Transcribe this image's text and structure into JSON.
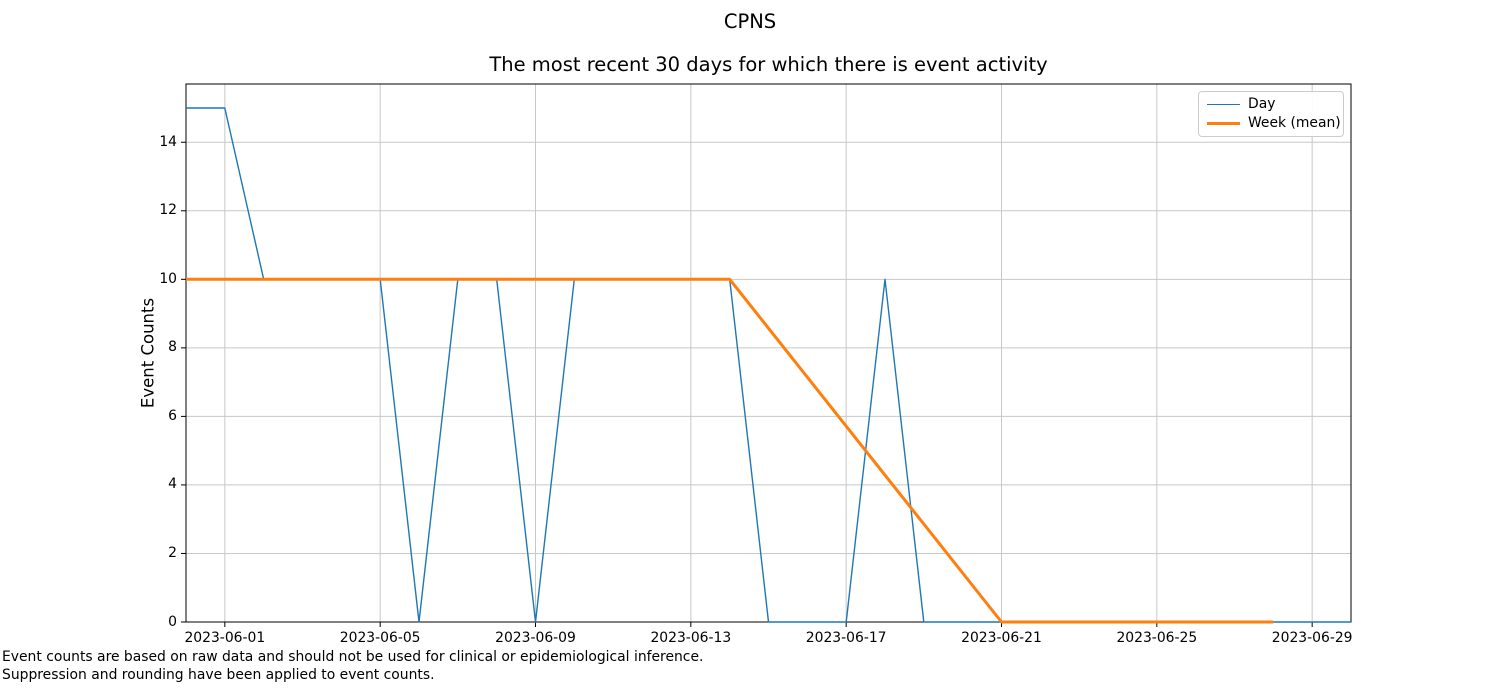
{
  "chart_data": {
    "type": "line",
    "title": "CPNS",
    "subtitle": "The most recent 30 days for which there is event activity",
    "xlabel": "",
    "ylabel": "Event Counts",
    "ylim": [
      0,
      15.7
    ],
    "grid": true,
    "grid_color": "#c8c8c8",
    "background_color": "#ffffff",
    "legend_position": "upper right",
    "x_dates": [
      "2023-05-31",
      "2023-06-01",
      "2023-06-02",
      "2023-06-03",
      "2023-06-04",
      "2023-06-05",
      "2023-06-06",
      "2023-06-07",
      "2023-06-08",
      "2023-06-09",
      "2023-06-10",
      "2023-06-11",
      "2023-06-12",
      "2023-06-13",
      "2023-06-14",
      "2023-06-15",
      "2023-06-16",
      "2023-06-17",
      "2023-06-18",
      "2023-06-19",
      "2023-06-20",
      "2023-06-21",
      "2023-06-22",
      "2023-06-23",
      "2023-06-24",
      "2023-06-25",
      "2023-06-26",
      "2023-06-27",
      "2023-06-28",
      "2023-06-29",
      "2023-06-30"
    ],
    "x_tick_labels": [
      "2023-06-01",
      "2023-06-05",
      "2023-06-09",
      "2023-06-13",
      "2023-06-17",
      "2023-06-21",
      "2023-06-25",
      "2023-06-29"
    ],
    "y_ticks": [
      0,
      2,
      4,
      6,
      8,
      10,
      12,
      14
    ],
    "series": [
      {
        "name": "Day",
        "color": "#1f77b4",
        "line_width": 1.4,
        "values": [
          15,
          15,
          10,
          10,
          10,
          10,
          0,
          10,
          10,
          0,
          10,
          10,
          10,
          10,
          10,
          0,
          0,
          0,
          10,
          0,
          0,
          0,
          0,
          0,
          0,
          0,
          0,
          0,
          0,
          0,
          0
        ]
      },
      {
        "name": "Week (mean)",
        "color": "#ff7f0e",
        "line_width": 3,
        "points": [
          {
            "date": "2023-05-31",
            "value": 10
          },
          {
            "date": "2023-06-07",
            "value": 10
          },
          {
            "date": "2023-06-14",
            "value": 10
          },
          {
            "date": "2023-06-21",
            "value": 0
          },
          {
            "date": "2023-06-28",
            "value": 0
          }
        ]
      }
    ],
    "footnotes": [
      "Event counts are based on raw data and should not be used for clinical or epidemiological inference.",
      "Suppression and rounding have been applied to event counts."
    ]
  }
}
